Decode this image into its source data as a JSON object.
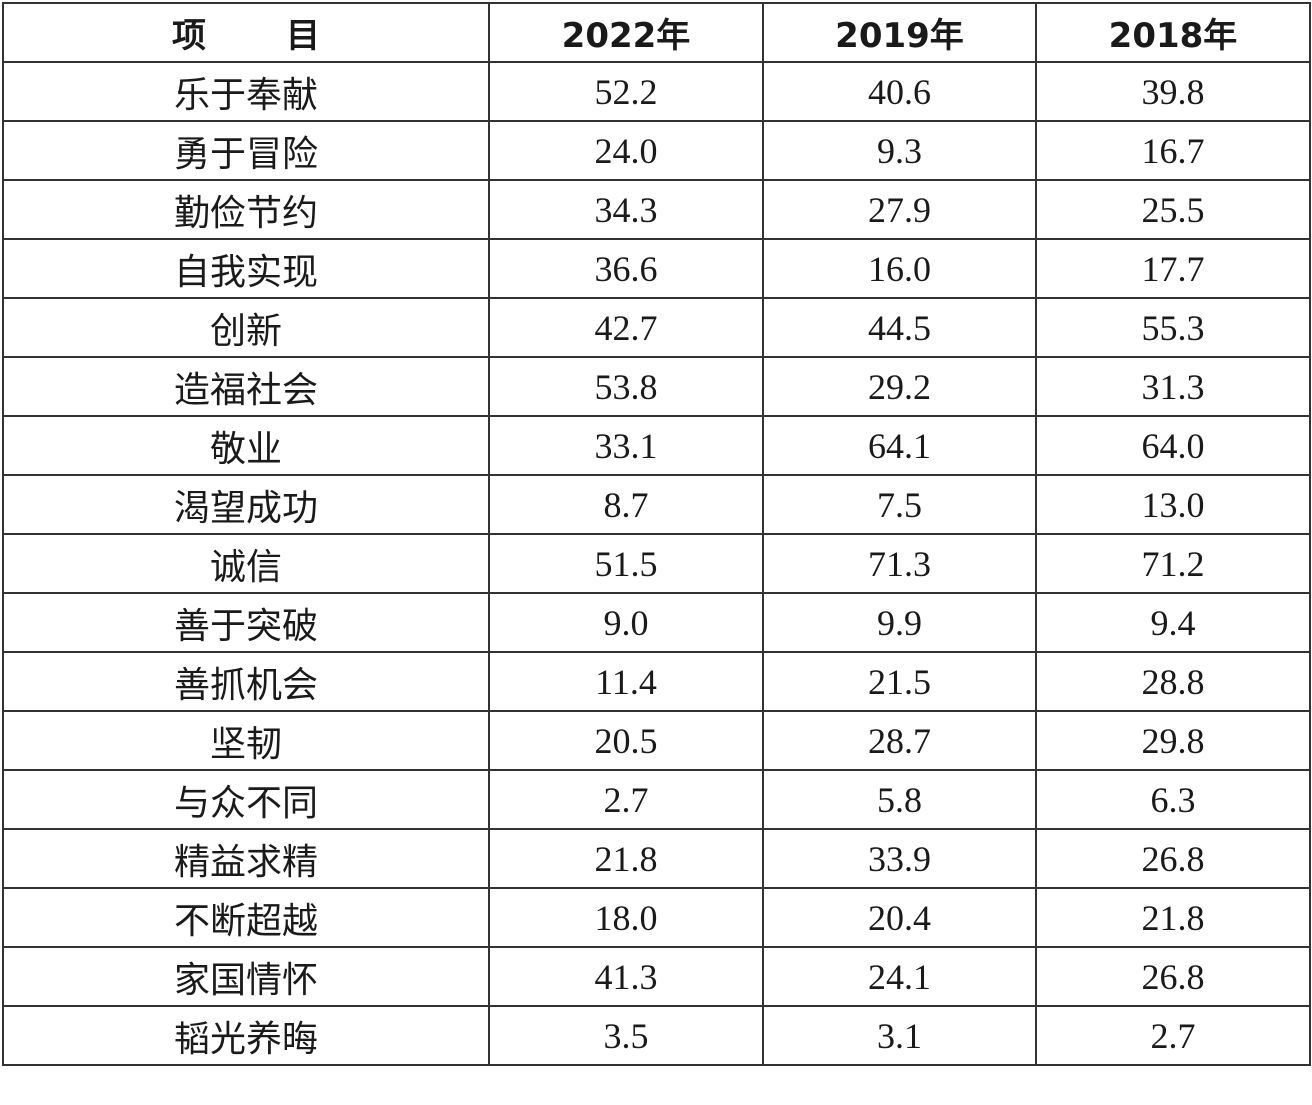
{
  "table": {
    "header": [
      "项目",
      "2022年",
      "2019年",
      "2018年"
    ],
    "rows": [
      [
        "乐于奉献",
        "52.2",
        "40.6",
        "39.8"
      ],
      [
        "勇于冒险",
        "24.0",
        "9.3",
        "16.7"
      ],
      [
        "勤俭节约",
        "34.3",
        "27.9",
        "25.5"
      ],
      [
        "自我实现",
        "36.6",
        "16.0",
        "17.7"
      ],
      [
        "创新",
        "42.7",
        "44.5",
        "55.3"
      ],
      [
        "造福社会",
        "53.8",
        "29.2",
        "31.3"
      ],
      [
        "敬业",
        "33.1",
        "64.1",
        "64.0"
      ],
      [
        "渴望成功",
        "8.7",
        "7.5",
        "13.0"
      ],
      [
        "诚信",
        "51.5",
        "71.3",
        "71.2"
      ],
      [
        "善于突破",
        "9.0",
        "9.9",
        "9.4"
      ],
      [
        "善抓机会",
        "11.4",
        "21.5",
        "28.8"
      ],
      [
        "坚韧",
        "20.5",
        "28.7",
        "29.8"
      ],
      [
        "与众不同",
        "2.7",
        "5.8",
        "6.3"
      ],
      [
        "精益求精",
        "21.8",
        "33.9",
        "26.8"
      ],
      [
        "不断超越",
        "18.0",
        "20.4",
        "21.8"
      ],
      [
        "家国情怀",
        "41.3",
        "24.1",
        "26.8"
      ],
      [
        "韬光养晦",
        "3.5",
        "3.1",
        "2.7"
      ]
    ]
  }
}
